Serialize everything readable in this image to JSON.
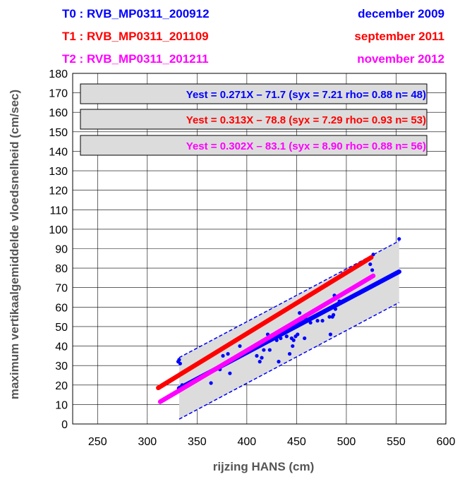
{
  "header": {
    "rows": [
      {
        "label": "T0 : RVB_MP0311_200912",
        "date": "december 2009",
        "color": "#0000ff"
      },
      {
        "label": "T1 : RVB_MP0311_201109",
        "date": "september 2011",
        "color": "#ff0000"
      },
      {
        "label": "T2 : RVB_MP0311_201211",
        "date": "november 2012",
        "color": "#ff00ff"
      }
    ]
  },
  "chart_data": {
    "type": "scatter",
    "xlabel": "rijzing HANS (cm)",
    "ylabel": "maximum vertikaalgemiddelde vloedsnelheid (cm/sec)",
    "xlim": [
      225,
      600
    ],
    "ylim": [
      0,
      180
    ],
    "xticks": [
      250,
      300,
      350,
      400,
      450,
      500,
      550,
      600
    ],
    "yticks": [
      0,
      10,
      20,
      30,
      40,
      50,
      60,
      70,
      80,
      90,
      100,
      110,
      120,
      130,
      140,
      150,
      160,
      170,
      180
    ],
    "grid": true,
    "equations": [
      {
        "text": "Yest = 0.271X – 71.7 (syx = 7.21 rho= 0.88 n= 48)",
        "color": "#0000ff"
      },
      {
        "text": "Yest = 0.313X – 78.8 (syx = 7.29 rho= 0.93 n= 53)",
        "color": "#ff0000"
      },
      {
        "text": "Yest = 0.302X – 83.1 (syx = 8.90 rho= 0.88 n= 56)",
        "color": "#ff00ff"
      }
    ],
    "regression_lines": [
      {
        "series": "T0",
        "slope": 0.271,
        "intercept": -71.7,
        "x_range": [
          332,
          553
        ],
        "color": "#0000ff"
      },
      {
        "series": "T1",
        "slope": 0.313,
        "intercept": -78.8,
        "x_range": [
          311,
          525
        ],
        "color": "#ff0000"
      },
      {
        "series": "T2",
        "slope": 0.302,
        "intercept": -83.1,
        "x_range": [
          313,
          527
        ],
        "color": "#ff00ff"
      }
    ],
    "confidence_band": {
      "x_range": [
        332,
        553
      ],
      "lower_offset": -15.8,
      "upper_offset": 15.8,
      "fill": "#dcdcdc",
      "edge_color": "#0000ff"
    },
    "points": [
      {
        "x": 331,
        "y": 32
      },
      {
        "x": 332,
        "y": 33
      },
      {
        "x": 333,
        "y": 31
      },
      {
        "x": 335,
        "y": 20
      },
      {
        "x": 364,
        "y": 21
      },
      {
        "x": 373,
        "y": 28
      },
      {
        "x": 376,
        "y": 35
      },
      {
        "x": 381,
        "y": 36
      },
      {
        "x": 383,
        "y": 26
      },
      {
        "x": 393,
        "y": 40
      },
      {
        "x": 399,
        "y": 37
      },
      {
        "x": 410,
        "y": 35
      },
      {
        "x": 413,
        "y": 32
      },
      {
        "x": 415,
        "y": 34
      },
      {
        "x": 417,
        "y": 38
      },
      {
        "x": 421,
        "y": 46
      },
      {
        "x": 423,
        "y": 38
      },
      {
        "x": 427,
        "y": 45
      },
      {
        "x": 430,
        "y": 43
      },
      {
        "x": 432,
        "y": 32
      },
      {
        "x": 434,
        "y": 44
      },
      {
        "x": 437,
        "y": 47
      },
      {
        "x": 440,
        "y": 45
      },
      {
        "x": 441,
        "y": 48
      },
      {
        "x": 443,
        "y": 36
      },
      {
        "x": 445,
        "y": 44
      },
      {
        "x": 446,
        "y": 40
      },
      {
        "x": 447,
        "y": 43
      },
      {
        "x": 449,
        "y": 45
      },
      {
        "x": 451,
        "y": 46
      },
      {
        "x": 453,
        "y": 57
      },
      {
        "x": 458,
        "y": 44
      },
      {
        "x": 459,
        "y": 54
      },
      {
        "x": 464,
        "y": 52
      },
      {
        "x": 471,
        "y": 53
      },
      {
        "x": 476,
        "y": 53
      },
      {
        "x": 483,
        "y": 55
      },
      {
        "x": 484,
        "y": 46
      },
      {
        "x": 486,
        "y": 55
      },
      {
        "x": 487,
        "y": 56
      },
      {
        "x": 488,
        "y": 66
      },
      {
        "x": 489,
        "y": 59
      },
      {
        "x": 493,
        "y": 63
      },
      {
        "x": 496,
        "y": 77
      },
      {
        "x": 505,
        "y": 79
      },
      {
        "x": 507,
        "y": 80
      },
      {
        "x": 524,
        "y": 82
      },
      {
        "x": 526,
        "y": 79
      },
      {
        "x": 527,
        "y": 87
      },
      {
        "x": 553,
        "y": 95
      }
    ]
  }
}
